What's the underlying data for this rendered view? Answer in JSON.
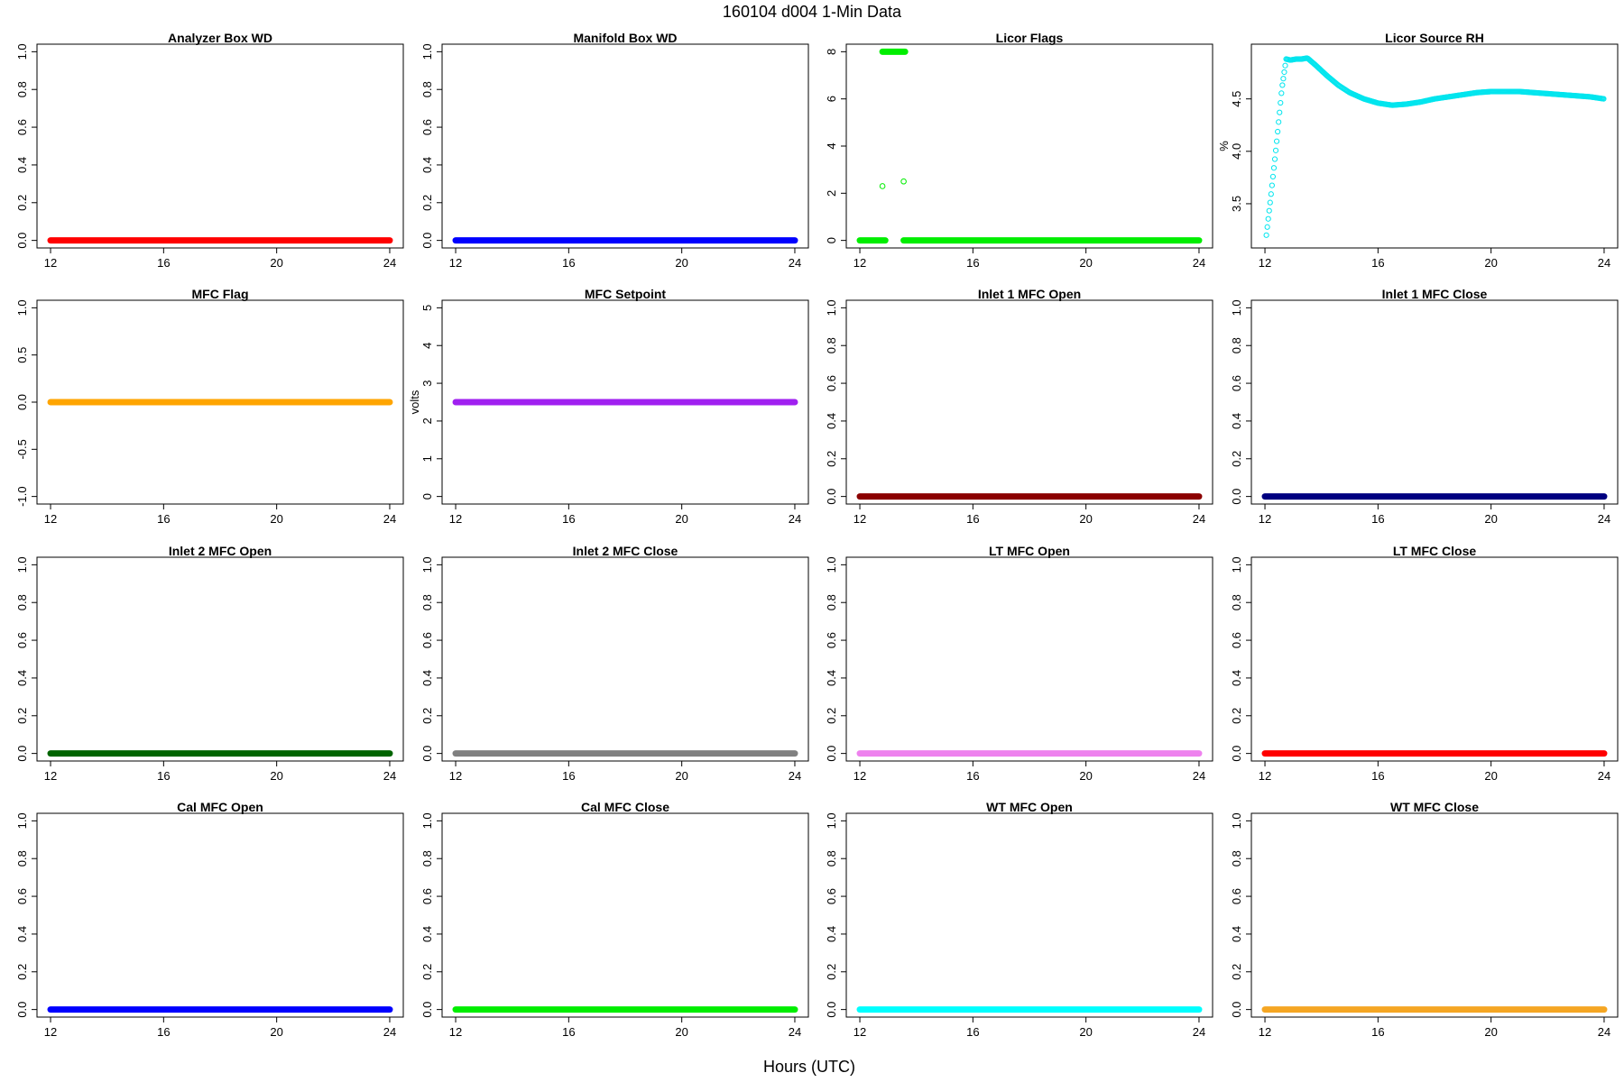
{
  "figure": {
    "title": "160104   d004   1-Min Data",
    "xlabel": "Hours (UTC)"
  },
  "chart_data": [
    {
      "type": "scatter",
      "title": "Analyzer Box WD",
      "ylabel": "",
      "xlim": [
        12,
        24
      ],
      "ylim": [
        0,
        1
      ],
      "xticks": [
        12,
        16,
        20,
        24
      ],
      "yticks": [
        "0.0",
        "0.2",
        "0.4",
        "0.6",
        "0.8",
        "1.0"
      ],
      "color": "#ff0000",
      "series": [
        {
          "x": [
            12,
            24
          ],
          "y": [
            0,
            0
          ],
          "kind": "constant"
        }
      ]
    },
    {
      "type": "scatter",
      "title": "Manifold Box WD",
      "ylabel": "",
      "xlim": [
        12,
        24
      ],
      "ylim": [
        0,
        1
      ],
      "xticks": [
        12,
        16,
        20,
        24
      ],
      "yticks": [
        "0.0",
        "0.2",
        "0.4",
        "0.6",
        "0.8",
        "1.0"
      ],
      "color": "#0000ff",
      "series": [
        {
          "x": [
            12,
            24
          ],
          "y": [
            0,
            0
          ],
          "kind": "constant"
        }
      ]
    },
    {
      "type": "scatter",
      "title": "Licor Flags",
      "ylabel": "",
      "xlim": [
        12,
        24
      ],
      "ylim": [
        0,
        8
      ],
      "xticks": [
        12,
        16,
        20,
        24
      ],
      "yticks": [
        "0",
        "2",
        "4",
        "6",
        "8"
      ],
      "color": "#00ee00",
      "series": [
        {
          "x": [
            12,
            12.9
          ],
          "y": [
            0,
            0
          ],
          "kind": "constant"
        },
        {
          "x": [
            12.8,
            13.6
          ],
          "y": [
            8,
            8
          ],
          "kind": "constant"
        },
        {
          "x": [
            13.55,
            24
          ],
          "y": [
            0,
            0
          ],
          "kind": "constant"
        },
        {
          "x": [
            12.8,
            13.55
          ],
          "y": [
            2.3,
            2.5
          ],
          "kind": "points"
        }
      ]
    },
    {
      "type": "scatter",
      "title": "Licor Source RH",
      "ylabel": "%",
      "xlim": [
        12,
        24
      ],
      "ylim": [
        3.15,
        4.95
      ],
      "xticks": [
        12,
        16,
        20,
        24
      ],
      "yticks": [
        "3.5",
        "4.0",
        "4.5"
      ],
      "ytick_values": [
        3.5,
        4.0,
        4.5
      ],
      "color": "#00e5ee",
      "series": [
        {
          "kind": "curve",
          "x": [
            12.05,
            12.2,
            12.4,
            12.6,
            12.75,
            12.9,
            13.1,
            13.3,
            13.5,
            13.8,
            14.2,
            14.6,
            15.0,
            15.5,
            16.0,
            16.5,
            17.0,
            17.5,
            18.0,
            18.5,
            19.0,
            19.5,
            20.0,
            20.5,
            21.0,
            21.5,
            22.0,
            22.5,
            23.0,
            23.5,
            24.0
          ],
          "y": [
            3.2,
            3.55,
            4.05,
            4.6,
            4.88,
            4.87,
            4.88,
            4.88,
            4.89,
            4.82,
            4.72,
            4.63,
            4.56,
            4.5,
            4.46,
            4.44,
            4.45,
            4.47,
            4.5,
            4.52,
            4.54,
            4.56,
            4.57,
            4.57,
            4.57,
            4.56,
            4.55,
            4.54,
            4.53,
            4.52,
            4.5
          ]
        }
      ]
    },
    {
      "type": "scatter",
      "title": "MFC Flag",
      "ylabel": "",
      "xlim": [
        12,
        24
      ],
      "ylim": [
        -1,
        1
      ],
      "xticks": [
        12,
        16,
        20,
        24
      ],
      "yticks": [
        "-1.0",
        "-0.5",
        "0.0",
        "0.5",
        "1.0"
      ],
      "ytick_values": [
        -1,
        -0.5,
        0,
        0.5,
        1
      ],
      "color": "#ffa500",
      "series": [
        {
          "x": [
            12,
            24
          ],
          "y": [
            0,
            0
          ],
          "kind": "constant"
        }
      ]
    },
    {
      "type": "scatter",
      "title": "MFC Setpoint",
      "ylabel": "volts",
      "xlim": [
        12,
        24
      ],
      "ylim": [
        0,
        5
      ],
      "xticks": [
        12,
        16,
        20,
        24
      ],
      "yticks": [
        "0",
        "1",
        "2",
        "3",
        "4",
        "5"
      ],
      "color": "#a020f0",
      "series": [
        {
          "x": [
            12,
            24
          ],
          "y": [
            2.5,
            2.5
          ],
          "kind": "constant"
        }
      ]
    },
    {
      "type": "scatter",
      "title": "Inlet 1 MFC Open",
      "ylabel": "",
      "xlim": [
        12,
        24
      ],
      "ylim": [
        0,
        1
      ],
      "xticks": [
        12,
        16,
        20,
        24
      ],
      "yticks": [
        "0.0",
        "0.2",
        "0.4",
        "0.6",
        "0.8",
        "1.0"
      ],
      "color": "#8b0000",
      "series": [
        {
          "x": [
            12,
            24
          ],
          "y": [
            0,
            0
          ],
          "kind": "constant"
        }
      ]
    },
    {
      "type": "scatter",
      "title": "Inlet 1 MFC Close",
      "ylabel": "",
      "xlim": [
        12,
        24
      ],
      "ylim": [
        0,
        1
      ],
      "xticks": [
        12,
        16,
        20,
        24
      ],
      "yticks": [
        "0.0",
        "0.2",
        "0.4",
        "0.6",
        "0.8",
        "1.0"
      ],
      "color": "#000080",
      "series": [
        {
          "x": [
            12,
            24
          ],
          "y": [
            0,
            0
          ],
          "kind": "constant"
        }
      ]
    },
    {
      "type": "scatter",
      "title": "Inlet 2 MFC Open",
      "ylabel": "",
      "xlim": [
        12,
        24
      ],
      "ylim": [
        0,
        1
      ],
      "xticks": [
        12,
        16,
        20,
        24
      ],
      "yticks": [
        "0.0",
        "0.2",
        "0.4",
        "0.6",
        "0.8",
        "1.0"
      ],
      "color": "#006400",
      "series": [
        {
          "x": [
            12,
            24
          ],
          "y": [
            0,
            0
          ],
          "kind": "constant"
        }
      ]
    },
    {
      "type": "scatter",
      "title": "Inlet 2 MFC Close",
      "ylabel": "",
      "xlim": [
        12,
        24
      ],
      "ylim": [
        0,
        1
      ],
      "xticks": [
        12,
        16,
        20,
        24
      ],
      "yticks": [
        "0.0",
        "0.2",
        "0.4",
        "0.6",
        "0.8",
        "1.0"
      ],
      "color": "#808080",
      "series": [
        {
          "x": [
            12,
            24
          ],
          "y": [
            0,
            0
          ],
          "kind": "constant"
        }
      ]
    },
    {
      "type": "scatter",
      "title": "LT MFC Open",
      "ylabel": "",
      "xlim": [
        12,
        24
      ],
      "ylim": [
        0,
        1
      ],
      "xticks": [
        12,
        16,
        20,
        24
      ],
      "yticks": [
        "0.0",
        "0.2",
        "0.4",
        "0.6",
        "0.8",
        "1.0"
      ],
      "color": "#ee82ee",
      "series": [
        {
          "x": [
            12,
            24
          ],
          "y": [
            0,
            0
          ],
          "kind": "constant"
        }
      ]
    },
    {
      "type": "scatter",
      "title": "LT MFC Close",
      "ylabel": "",
      "xlim": [
        12,
        24
      ],
      "ylim": [
        0,
        1
      ],
      "xticks": [
        12,
        16,
        20,
        24
      ],
      "yticks": [
        "0.0",
        "0.2",
        "0.4",
        "0.6",
        "0.8",
        "1.0"
      ],
      "color": "#ff0000",
      "series": [
        {
          "x": [
            12,
            24
          ],
          "y": [
            0,
            0
          ],
          "kind": "constant"
        }
      ]
    },
    {
      "type": "scatter",
      "title": "Cal MFC Open",
      "ylabel": "",
      "xlim": [
        12,
        24
      ],
      "ylim": [
        0,
        1
      ],
      "xticks": [
        12,
        16,
        20,
        24
      ],
      "yticks": [
        "0.0",
        "0.2",
        "0.4",
        "0.6",
        "0.8",
        "1.0"
      ],
      "color": "#0000ff",
      "series": [
        {
          "x": [
            12,
            24
          ],
          "y": [
            0,
            0
          ],
          "kind": "constant"
        }
      ]
    },
    {
      "type": "scatter",
      "title": "Cal MFC Close",
      "ylabel": "",
      "xlim": [
        12,
        24
      ],
      "ylim": [
        0,
        1
      ],
      "xticks": [
        12,
        16,
        20,
        24
      ],
      "yticks": [
        "0.0",
        "0.2",
        "0.4",
        "0.6",
        "0.8",
        "1.0"
      ],
      "color": "#00ee00",
      "series": [
        {
          "x": [
            12,
            24
          ],
          "y": [
            0,
            0
          ],
          "kind": "constant"
        }
      ]
    },
    {
      "type": "scatter",
      "title": "WT MFC Open",
      "ylabel": "",
      "xlim": [
        12,
        24
      ],
      "ylim": [
        0,
        1
      ],
      "xticks": [
        12,
        16,
        20,
        24
      ],
      "yticks": [
        "0.0",
        "0.2",
        "0.4",
        "0.6",
        "0.8",
        "1.0"
      ],
      "color": "#00ffff",
      "series": [
        {
          "x": [
            12,
            24
          ],
          "y": [
            0,
            0
          ],
          "kind": "constant"
        }
      ]
    },
    {
      "type": "scatter",
      "title": "WT MFC Close",
      "ylabel": "",
      "xlim": [
        12,
        24
      ],
      "ylim": [
        0,
        1
      ],
      "xticks": [
        12,
        16,
        20,
        24
      ],
      "yticks": [
        "0.0",
        "0.2",
        "0.4",
        "0.6",
        "0.8",
        "1.0"
      ],
      "color": "#f5a623",
      "series": [
        {
          "x": [
            12,
            24
          ],
          "y": [
            0,
            0
          ],
          "kind": "constant"
        }
      ]
    }
  ]
}
